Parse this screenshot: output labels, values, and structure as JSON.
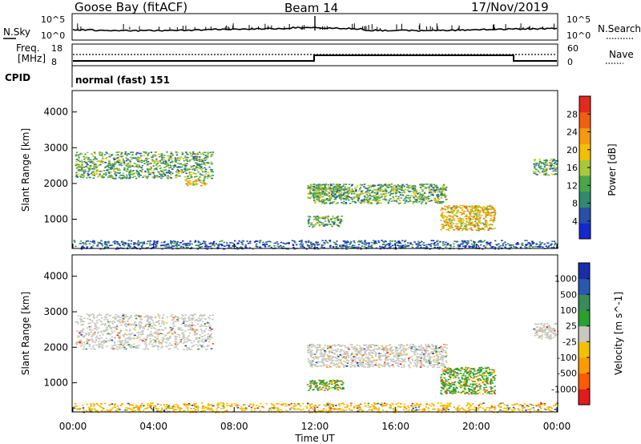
{
  "header": {
    "station": "Goose Bay (fitACF)",
    "beam": "Beam 14",
    "date": "17/Nov/2019"
  },
  "top_strip": {
    "left_label": "N.Sky",
    "right_label": "N.Search",
    "left_ticks": [
      "10^5",
      "10^0"
    ],
    "right_ticks": [
      "10^5",
      "10^0"
    ]
  },
  "freq_strip": {
    "left_label_1": "Freq.",
    "left_label_2": "[MHz]",
    "left_ticks": [
      "18",
      "8"
    ],
    "right_label": "Nave",
    "right_ticks": [
      "60",
      "0"
    ]
  },
  "cpid": {
    "label": "CPID",
    "mode": "normal (fast) 151"
  },
  "colors": {
    "power": [
      "#1428d0",
      "#2a4fa8",
      "#2f8a6e",
      "#4aa64a",
      "#a8c83a",
      "#f2c000",
      "#f59a10",
      "#f06010",
      "#e42a1c"
    ],
    "velocity": [
      "#e41a1c",
      "#ff5a00",
      "#ff9a00",
      "#f3c000",
      "#c8c8c0",
      "#2ca02c",
      "#3a8a5a",
      "#2a5ab0",
      "#1a2ea8"
    ]
  },
  "chart_data": [
    {
      "type": "heatmap",
      "title": "",
      "xlabel": "Time UT",
      "ylabel": "Slant Range [km]",
      "xlim": [
        "00:00",
        "24:00"
      ],
      "ylim": [
        180,
        4600
      ],
      "x_ticks": [
        "00:00",
        "04:00",
        "08:00",
        "12:00",
        "16:00",
        "20:00",
        "00:00"
      ],
      "y_ticks": [
        1000,
        2000,
        3000,
        4000
      ],
      "colorbar": {
        "label": "Power [dB]",
        "ticks": [
          4,
          8,
          12,
          16,
          20,
          24,
          28
        ]
      },
      "echo_regions": [
        {
          "t": [
            0.1,
            6.9
          ],
          "range": [
            2150,
            2900
          ],
          "level": "medium"
        },
        {
          "t": [
            5.5,
            6.6
          ],
          "range": [
            1950,
            2150
          ],
          "level": "high"
        },
        {
          "t": [
            0.0,
            24.0
          ],
          "range": [
            180,
            420
          ],
          "level": "low"
        },
        {
          "t": [
            11.6,
            13.2
          ],
          "range": [
            1600,
            2000
          ],
          "level": "medium"
        },
        {
          "t": [
            11.8,
            18.5
          ],
          "range": [
            1450,
            2000
          ],
          "level": "medium"
        },
        {
          "t": [
            11.6,
            13.3
          ],
          "range": [
            800,
            1100
          ],
          "level": "medium"
        },
        {
          "t": [
            18.2,
            20.9
          ],
          "range": [
            700,
            1400
          ],
          "level": "high"
        },
        {
          "t": [
            22.8,
            24.0
          ],
          "range": [
            2250,
            2700
          ],
          "level": "medium"
        }
      ]
    },
    {
      "type": "heatmap",
      "title": "",
      "xlabel": "Time UT",
      "ylabel": "Slant Range [km]",
      "xlim": [
        "00:00",
        "24:00"
      ],
      "ylim": [
        180,
        4600
      ],
      "x_ticks": [
        "00:00",
        "04:00",
        "08:00",
        "12:00",
        "16:00",
        "20:00",
        "00:00"
      ],
      "y_ticks": [
        1000,
        2000,
        3000,
        4000
      ],
      "colorbar": {
        "label": "Velocity [m s^-1]",
        "ticks": [
          "1000",
          "500",
          "100",
          "25",
          "-25",
          "-100",
          "-500",
          "-1000"
        ]
      },
      "echo_regions": [
        {
          "t": [
            0.1,
            6.9
          ],
          "range": [
            1950,
            2950
          ],
          "level": "ground-scatter"
        },
        {
          "t": [
            11.6,
            18.5
          ],
          "range": [
            1450,
            2100
          ],
          "level": "ground-scatter"
        },
        {
          "t": [
            11.6,
            13.4
          ],
          "range": [
            800,
            1100
          ],
          "level": "positive"
        },
        {
          "t": [
            18.2,
            20.9
          ],
          "range": [
            700,
            1450
          ],
          "level": "positive"
        },
        {
          "t": [
            0.0,
            24.0
          ],
          "range": [
            180,
            450
          ],
          "level": "negative"
        },
        {
          "t": [
            22.8,
            24.0
          ],
          "range": [
            2250,
            2700
          ],
          "level": "ground-scatter"
        }
      ]
    }
  ]
}
